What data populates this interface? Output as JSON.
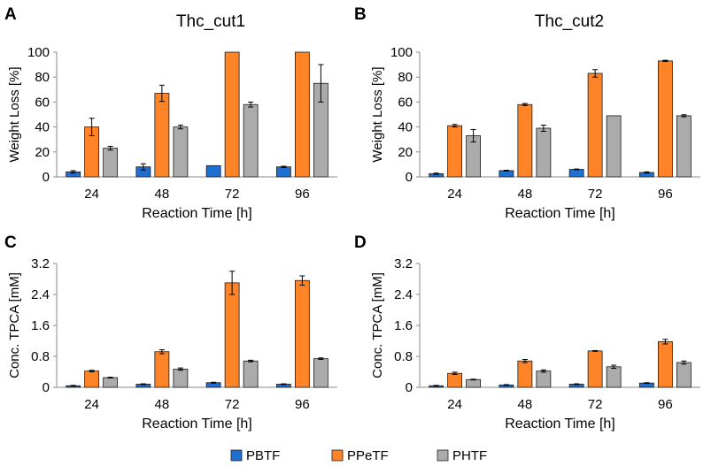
{
  "legend": {
    "items": [
      {
        "name": "PBTF",
        "color": "#1f6fd1"
      },
      {
        "name": "PPeTF",
        "color": "#ff8427"
      },
      {
        "name": "PHTF",
        "color": "#ababab"
      }
    ]
  },
  "chart_data": [
    {
      "panel": "A",
      "type": "bar",
      "title": "Thc_cut1",
      "xlabel": "Reaction Time [h]",
      "ylabel": "Weight Loss [%]",
      "ylim": [
        0,
        100
      ],
      "yticks": [
        "0",
        "20",
        "40",
        "60",
        "80",
        "100"
      ],
      "categories": [
        "24",
        "48",
        "72",
        "96"
      ],
      "series": [
        {
          "name": "PBTF",
          "values": [
            4,
            8,
            9,
            8
          ],
          "errors": [
            1,
            2.5,
            0,
            0.5
          ]
        },
        {
          "name": "PPeTF",
          "values": [
            40,
            67,
            100,
            100
          ],
          "errors": [
            7,
            6.5,
            0,
            0
          ]
        },
        {
          "name": "PHTF",
          "values": [
            23,
            40,
            58,
            75
          ],
          "errors": [
            1.5,
            1.5,
            2,
            15
          ]
        }
      ]
    },
    {
      "panel": "B",
      "type": "bar",
      "title": "Thc_cut2",
      "xlabel": "Reaction Time [h]",
      "ylabel": "Weight Loss [%]",
      "ylim": [
        0,
        100
      ],
      "yticks": [
        "0",
        "20",
        "40",
        "60",
        "80",
        "100"
      ],
      "categories": [
        "24",
        "48",
        "72",
        "96"
      ],
      "series": [
        {
          "name": "PBTF",
          "values": [
            2.5,
            5,
            6,
            3.5
          ],
          "errors": [
            0.5,
            0.3,
            0.3,
            0.5
          ]
        },
        {
          "name": "PPeTF",
          "values": [
            41,
            58,
            83,
            93
          ],
          "errors": [
            1,
            0.8,
            3,
            0.5
          ]
        },
        {
          "name": "PHTF",
          "values": [
            33,
            39,
            49,
            49
          ],
          "errors": [
            5,
            2.5,
            0,
            0.8
          ]
        }
      ]
    },
    {
      "panel": "C",
      "type": "bar",
      "title": "",
      "xlabel": "Reaction Time [h]",
      "ylabel": "Conc. TPCA [mM]",
      "ylim": [
        0,
        3.2
      ],
      "yticks": [
        "0",
        "0.8",
        "1.6",
        "2.4",
        "3.2"
      ],
      "categories": [
        "24",
        "48",
        "72",
        "96"
      ],
      "series": [
        {
          "name": "PBTF",
          "values": [
            0.04,
            0.08,
            0.12,
            0.08
          ],
          "errors": [
            0.01,
            0.01,
            0.01,
            0.01
          ]
        },
        {
          "name": "PPeTF",
          "values": [
            0.42,
            0.92,
            2.7,
            2.76
          ],
          "errors": [
            0.02,
            0.05,
            0.3,
            0.12
          ]
        },
        {
          "name": "PHTF",
          "values": [
            0.25,
            0.47,
            0.68,
            0.74
          ],
          "errors": [
            0.01,
            0.03,
            0.02,
            0.02
          ]
        }
      ]
    },
    {
      "panel": "D",
      "type": "bar",
      "title": "",
      "xlabel": "Reaction Time [h]",
      "ylabel": "Conc. TPCA [mM]",
      "ylim": [
        0,
        3.2
      ],
      "yticks": [
        "0",
        "0.8",
        "1.6",
        "2.4",
        "3.2"
      ],
      "categories": [
        "24",
        "48",
        "72",
        "96"
      ],
      "series": [
        {
          "name": "PBTF",
          "values": [
            0.04,
            0.06,
            0.08,
            0.11
          ],
          "errors": [
            0.01,
            0.01,
            0.01,
            0.01
          ]
        },
        {
          "name": "PPeTF",
          "values": [
            0.36,
            0.68,
            0.94,
            1.18
          ],
          "errors": [
            0.03,
            0.04,
            0.01,
            0.06
          ]
        },
        {
          "name": "PHTF",
          "values": [
            0.2,
            0.42,
            0.53,
            0.64
          ],
          "errors": [
            0.01,
            0.03,
            0.04,
            0.04
          ]
        }
      ]
    }
  ]
}
